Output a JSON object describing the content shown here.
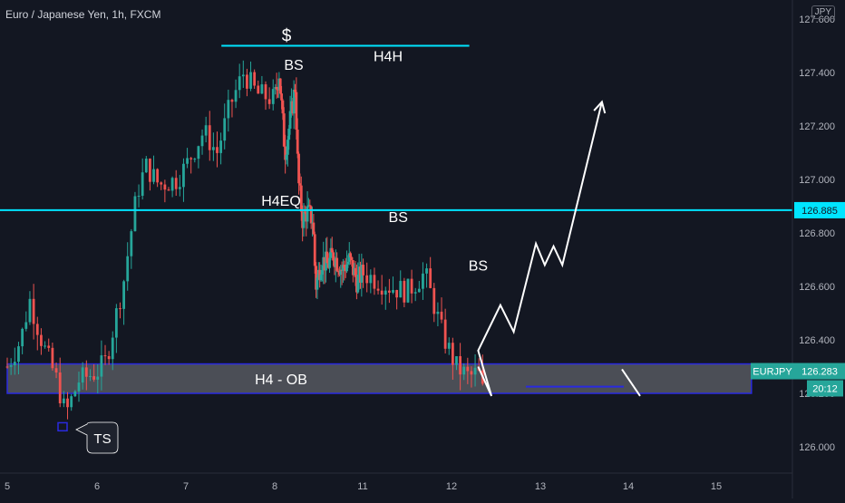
{
  "header": {
    "symbol": "Euro / Japanese Yen, 1h, FXCM",
    "currency": "JPY"
  },
  "chart_data": {
    "type": "candlestick",
    "title": "Euro / Japanese Yen, 1h, FXCM",
    "xlabel": "",
    "ylabel": "",
    "ylim": [
      125.94,
      127.62
    ],
    "xlim": [
      5,
      15.6
    ],
    "x_ticks": [
      "5",
      "6",
      "7",
      "8",
      "11",
      "12",
      "13",
      "14",
      "15"
    ],
    "y_ticks": [
      "126.000",
      "126.200",
      "126.400",
      "126.600",
      "126.800",
      "127.000",
      "127.200",
      "127.400",
      "127.600"
    ],
    "grid": false,
    "legend": "none",
    "price_path": [
      [
        5.0,
        126.3
      ],
      [
        5.15,
        126.4
      ],
      [
        5.25,
        126.55
      ],
      [
        5.4,
        126.38
      ],
      [
        5.55,
        126.25
      ],
      [
        5.65,
        126.12
      ],
      [
        5.8,
        126.25
      ],
      [
        6.0,
        126.28
      ],
      [
        6.1,
        126.32
      ],
      [
        6.3,
        126.62
      ],
      [
        6.45,
        126.95
      ],
      [
        6.55,
        127.05
      ],
      [
        6.7,
        126.98
      ],
      [
        6.9,
        127.0
      ],
      [
        7.0,
        127.05
      ],
      [
        7.2,
        127.18
      ],
      [
        7.35,
        127.1
      ],
      [
        7.5,
        127.28
      ],
      [
        7.65,
        127.4
      ],
      [
        7.8,
        127.32
      ],
      [
        8.0,
        127.3
      ],
      [
        8.15,
        127.4
      ],
      [
        8.35,
        127.1
      ],
      [
        8.5,
        127.2
      ],
      [
        8.7,
        127.35
      ],
      [
        8.8,
        127.0
      ],
      [
        8.95,
        126.85
      ],
      [
        9.1,
        126.88
      ],
      [
        9.3,
        126.85
      ],
      [
        9.4,
        126.6
      ],
      [
        9.6,
        126.7
      ],
      [
        9.8,
        126.68
      ],
      [
        10.0,
        126.72
      ],
      [
        10.3,
        126.66
      ],
      [
        10.55,
        126.7
      ],
      [
        10.8,
        126.62
      ],
      [
        11.0,
        126.65
      ],
      [
        11.3,
        126.6
      ],
      [
        11.5,
        126.58
      ],
      [
        11.7,
        126.65
      ],
      [
        11.9,
        126.42
      ],
      [
        12.05,
        126.3
      ],
      [
        12.2,
        126.26
      ],
      [
        12.3,
        126.28
      ],
      [
        12.35,
        126.21
      ]
    ],
    "series": [
      {
        "name": "EURJPY",
        "last": 126.283
      }
    ],
    "levels": [
      {
        "label": "$",
        "sublabel": "H4H",
        "price": 127.5,
        "x_from": 7.4,
        "x_to": 12.2
      },
      {
        "label": "H4EQ",
        "price": 126.885,
        "x_from": 5.0,
        "x_to": 15.6,
        "axis_label": "126.885"
      }
    ],
    "zones": [
      {
        "label": "H4 - OB",
        "price_top": 126.31,
        "price_bottom": 126.2,
        "x_from": 5.0,
        "x_to": 15.4
      }
    ],
    "annotations": [
      {
        "text": "BS",
        "x": 8.65,
        "y": 127.41
      },
      {
        "text": "BS",
        "x": 11.4,
        "y": 126.84
      },
      {
        "text": "BS",
        "x": 12.3,
        "y": 126.66
      },
      {
        "text": "TS",
        "x": 6.0,
        "y": 126.03
      }
    ],
    "projection": [
      [
        12.3,
        126.3
      ],
      [
        12.45,
        126.19
      ],
      [
        12.3,
        126.36
      ],
      [
        12.55,
        126.53
      ],
      [
        12.7,
        126.43
      ],
      [
        12.95,
        126.76
      ],
      [
        13.05,
        126.68
      ],
      [
        13.15,
        126.75
      ],
      [
        13.25,
        126.68
      ],
      [
        13.7,
        127.29
      ]
    ],
    "price_labels": {
      "symbol": "EURJPY",
      "price": "126.283",
      "countdown": "20:12",
      "color": "#26a69a"
    },
    "colors": {
      "background": "#131722",
      "bull": "#26a69a",
      "bear": "#ef5350",
      "level": "#00e5ff",
      "zone_border": "#2a2ae0",
      "zone_fill": "#e0e0e0",
      "text": "#ffffff",
      "axis_text": "#b2b5be"
    }
  }
}
